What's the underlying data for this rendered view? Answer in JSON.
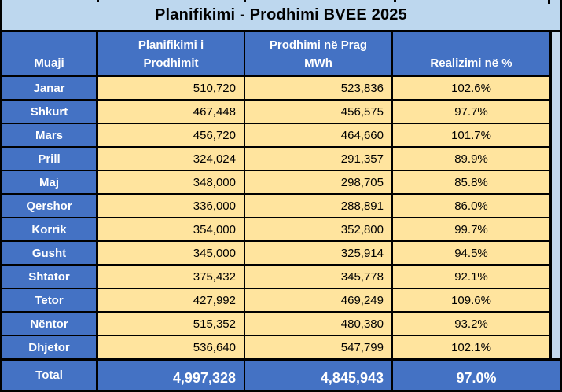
{
  "title": "Planifikimi - Prodhimi BVEE 2025",
  "columns": {
    "month": "Muaji",
    "planned_line1": "Planifikimi i",
    "planned_line2": "Prodhimit",
    "produced_line1": "Prodhimi në Prag",
    "produced_line2": "MWh",
    "realization": "Realizimi në %"
  },
  "rows": [
    {
      "month": "Janar",
      "planned": "510,720",
      "produced": "523,836",
      "realization": "102.6%"
    },
    {
      "month": "Shkurt",
      "planned": "467,448",
      "produced": "456,575",
      "realization": "97.7%"
    },
    {
      "month": "Mars",
      "planned": "456,720",
      "produced": "464,660",
      "realization": "101.7%"
    },
    {
      "month": "Prill",
      "planned": "324,024",
      "produced": "291,357",
      "realization": "89.9%"
    },
    {
      "month": "Maj",
      "planned": "348,000",
      "produced": "298,705",
      "realization": "85.8%"
    },
    {
      "month": "Qershor",
      "planned": "336,000",
      "produced": "288,891",
      "realization": "86.0%"
    },
    {
      "month": "Korrik",
      "planned": "354,000",
      "produced": "352,800",
      "realization": "99.7%"
    },
    {
      "month": "Gusht",
      "planned": "345,000",
      "produced": "325,914",
      "realization": "94.5%"
    },
    {
      "month": "Shtator",
      "planned": "375,432",
      "produced": "345,778",
      "realization": "92.1%"
    },
    {
      "month": "Tetor",
      "planned": "427,992",
      "produced": "469,249",
      "realization": "109.6%"
    },
    {
      "month": "Nëntor",
      "planned": "515,352",
      "produced": "480,380",
      "realization": "93.2%"
    },
    {
      "month": "Dhjetor",
      "planned": "536,640",
      "produced": "547,799",
      "realization": "102.1%"
    }
  ],
  "total": {
    "label": "Total",
    "planned": "4,997,328",
    "produced": "4,845,943",
    "realization": "97.0%"
  },
  "colors": {
    "header_blue": "#4472C4",
    "light_blue": "#BDD7EE",
    "sliver_blue": "#C3D7EC",
    "gold": "#FFE49E",
    "border_black": "#000000"
  }
}
